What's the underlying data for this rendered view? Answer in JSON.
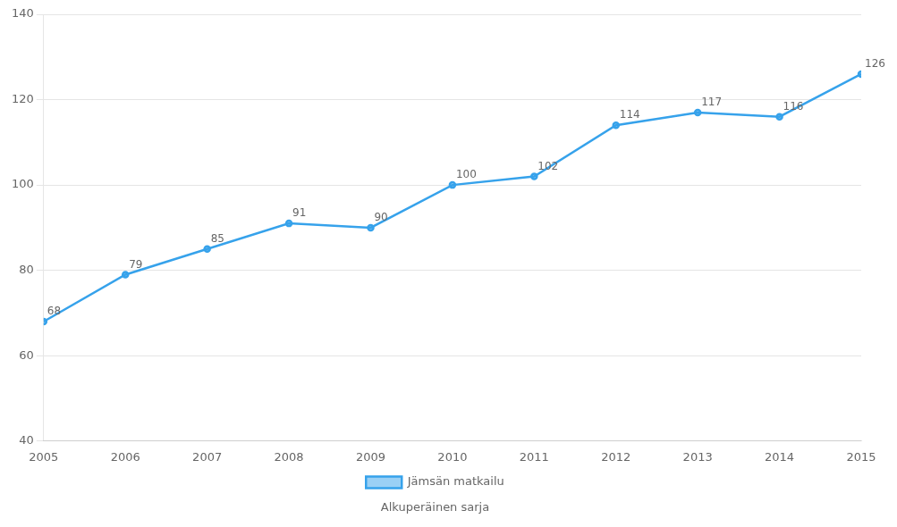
{
  "chart_data": {
    "type": "line",
    "x": [
      2005,
      2006,
      2007,
      2008,
      2009,
      2010,
      2011,
      2012,
      2013,
      2014,
      2015
    ],
    "series": [
      {
        "name": "Jämsän matkailu",
        "values": [
          68,
          79,
          85,
          91,
          90,
          100,
          102,
          114,
          117,
          116,
          126
        ]
      }
    ],
    "xlim": [
      2005,
      2015
    ],
    "xticks": [
      2005,
      2006,
      2007,
      2008,
      2009,
      2010,
      2011,
      2012,
      2013,
      2014,
      2015
    ],
    "ylim": [
      40,
      140
    ],
    "yticks": [
      40,
      60,
      80,
      100,
      120,
      140
    ],
    "grid": "y",
    "legend": "bottom",
    "data_labels": true,
    "annotation": "Alkuperäinen sarja"
  }
}
